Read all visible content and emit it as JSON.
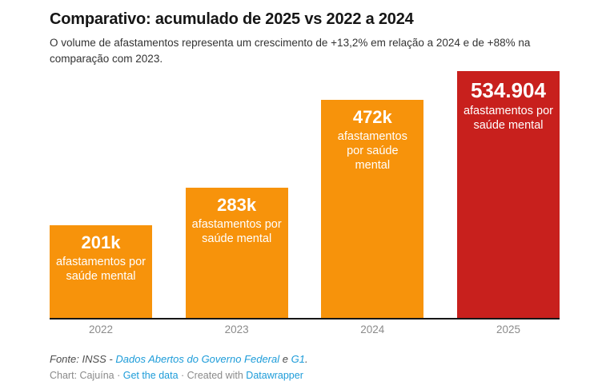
{
  "header": {
    "title": "Comparativo: acumulado de 2025 vs 2022 a 2024",
    "description": "O volume de afastamentos representa um crescimento de +13,2% em relação a 2024 e de +88% na comparação com 2023."
  },
  "chart_data": {
    "type": "bar",
    "title": "Comparativo: acumulado de 2025 vs 2022 a 2024",
    "categories": [
      "2022",
      "2023",
      "2024",
      "2025"
    ],
    "values": [
      201000,
      283000,
      472000,
      534904
    ],
    "value_display": [
      "201k",
      "283k",
      "472k",
      "534.904"
    ],
    "bar_sublabel": "afastamentos por saúde mental",
    "bar_sublabel_lines": [
      [
        "afastamentos por",
        "saúde mental"
      ],
      [
        "afastamentos por",
        "saúde mental"
      ],
      [
        "afastamentos",
        "por saúde",
        "mental"
      ],
      [
        "afastamentos por",
        "saúde mental"
      ]
    ],
    "bar_colors": [
      "#F7930B",
      "#F7930B",
      "#F7930B",
      "#C8201D"
    ],
    "highlight_index": 3,
    "xlabel": "",
    "ylabel": "",
    "ylim": [
      0,
      534904
    ],
    "grid": false,
    "legend": "none",
    "axis_line_color": "#161616",
    "axis_label_color": "#8b8b8b"
  },
  "footer": {
    "source_prefix": "Fonte: INSS - ",
    "source_link_1": "Dados Abertos do Governo Federal",
    "source_mid": " e ",
    "source_link_2": "G1",
    "source_suffix": ".",
    "attribution_prefix": "Chart: Cajuína · ",
    "get_data_link": "Get the data",
    "attribution_mid": " · Created with ",
    "datawrapper_link": "Datawrapper"
  },
  "colors": {
    "orange": "#F7930B",
    "red": "#C8201D",
    "link_blue": "#1D9CD9",
    "title_text": "#161616",
    "body_text": "#333333",
    "axis_label": "#8B8B8B"
  }
}
